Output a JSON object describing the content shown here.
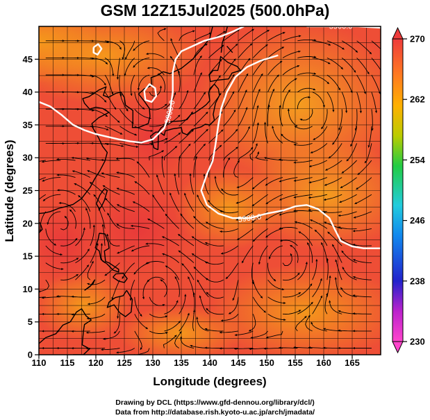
{
  "title": "GSM 12Z15Jul2025 (500.0hPa)",
  "xlabel": "Longitude (degrees)",
  "ylabel": "Latitude  (degrees)",
  "credits": [
    "Drawing by DCL (https://www.gfd-dennou.org/library/dcl/)",
    "Data from http://database.rish.kyoto-u.ac.jp/arch/jmadata/"
  ],
  "colors": {
    "background_field": "#ee4a34",
    "warm_field": "#f07a1e",
    "contour": "#ffffff",
    "coast": "#000000",
    "streamline": "#000000"
  },
  "chart_data": {
    "type": "heatmap",
    "variable_note": "500 hPa field with streamlines and geopotential height contours",
    "xlim": [
      110,
      170
    ],
    "ylim": [
      0,
      50
    ],
    "x_ticks": [
      "110",
      "115",
      "120",
      "125",
      "130",
      "135",
      "140",
      "145",
      "150",
      "155",
      "160",
      "165"
    ],
    "y_ticks": [
      "0",
      "5",
      "10",
      "15",
      "20",
      "25",
      "30",
      "35",
      "40",
      "45"
    ],
    "grid": true,
    "colorbar": {
      "range": [
        230,
        270
      ],
      "ticks": [
        "230",
        "238",
        "246",
        "254",
        "262",
        "270"
      ],
      "colors": [
        "#ff44cc",
        "#bb22cc",
        "#2222cc",
        "#1188ee",
        "#22ccdd",
        "#22cc44",
        "#bbcc00",
        "#ffb000",
        "#ff7a20",
        "#ee3c3c"
      ]
    },
    "contours": [
      {
        "label": "5900.0",
        "points": [
          [
            110,
            38.5
          ],
          [
            112,
            37.8
          ],
          [
            114,
            36.5
          ],
          [
            116,
            35.0
          ],
          [
            118,
            34.2
          ],
          [
            120,
            33.6
          ],
          [
            122,
            33.2
          ],
          [
            124,
            32.8
          ],
          [
            126,
            32.5
          ],
          [
            128,
            32.3
          ],
          [
            130,
            32.8
          ],
          [
            132,
            34.5
          ],
          [
            133,
            37
          ],
          [
            133.5,
            40
          ],
          [
            133.5,
            43
          ],
          [
            134,
            45
          ],
          [
            135,
            46.2
          ],
          [
            137,
            47
          ],
          [
            139,
            47.8
          ],
          [
            142,
            48.5
          ],
          [
            144,
            49.2
          ],
          [
            146,
            50
          ]
        ]
      },
      {
        "label": "5900.0",
        "points": [
          [
            170,
            49.8
          ],
          [
            166,
            50
          ],
          [
            163,
            50
          ],
          [
            160,
            50
          ],
          [
            157,
            50
          ]
        ]
      },
      {
        "label": "5900.0",
        "points": [
          [
            152,
            45.6
          ],
          [
            149,
            44.8
          ],
          [
            146.5,
            43.8
          ],
          [
            144.5,
            42.3
          ],
          [
            143,
            40
          ],
          [
            142,
            37.5
          ],
          [
            141.5,
            35
          ],
          [
            141,
            32
          ],
          [
            140.5,
            29.5
          ],
          [
            139.5,
            27.5
          ],
          [
            138.5,
            25
          ],
          [
            139.5,
            22.8
          ],
          [
            141.5,
            21.5
          ],
          [
            144,
            20.8
          ],
          [
            147,
            20.8
          ],
          [
            150,
            21.5
          ],
          [
            153,
            22
          ],
          [
            155,
            22.6
          ],
          [
            157,
            22.8
          ],
          [
            159,
            22.2
          ],
          [
            161,
            20.8
          ],
          [
            162,
            19
          ],
          [
            163,
            17.3
          ],
          [
            165,
            16.5
          ],
          [
            167,
            16.2
          ],
          [
            170,
            16.2
          ]
        ]
      },
      {
        "label": "",
        "points": [
          [
            128.5,
            40.2
          ],
          [
            129.4,
            41.2
          ],
          [
            130.4,
            40.6
          ],
          [
            130.6,
            39.4
          ],
          [
            129.8,
            38.5
          ],
          [
            128.7,
            38.8
          ],
          [
            128.5,
            40.2
          ]
        ]
      },
      {
        "label": "",
        "points": [
          [
            119.6,
            46.8
          ],
          [
            120.4,
            47.3
          ],
          [
            121.0,
            46.6
          ],
          [
            120.3,
            45.7
          ],
          [
            119.6,
            46.0
          ],
          [
            119.6,
            46.8
          ]
        ]
      }
    ]
  }
}
